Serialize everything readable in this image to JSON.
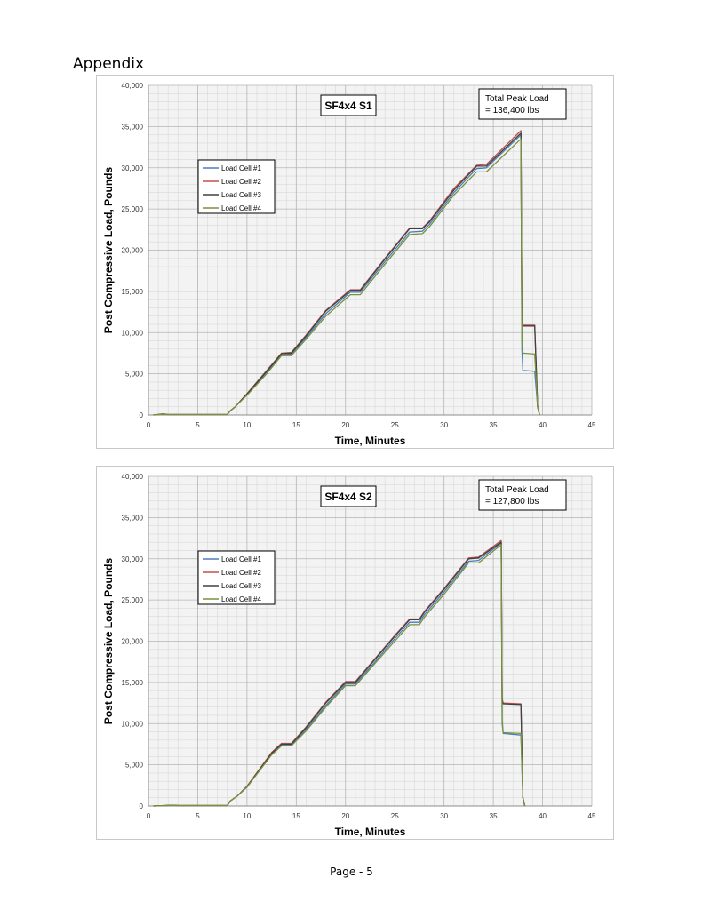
{
  "page": {
    "heading": "Appendix",
    "footer": "Page - 5"
  },
  "chart_data": [
    {
      "type": "line",
      "title": "SF4x4 S1",
      "annotation": [
        "Total Peak Load",
        "= 136,400 lbs"
      ],
      "xlabel": "Time, Minutes",
      "ylabel": "Post Compressive Load, Pounds",
      "xlim": [
        0,
        45
      ],
      "ylim": [
        0,
        40000
      ],
      "xticks": [
        0,
        5,
        10,
        15,
        20,
        25,
        30,
        35,
        40,
        45
      ],
      "yticks": [
        0,
        5000,
        10000,
        15000,
        20000,
        25000,
        30000,
        35000,
        40000
      ],
      "ytick_labels": [
        "0",
        "5,000",
        "10,000",
        "15,000",
        "20,000",
        "25,000",
        "30,000",
        "35,000",
        "40,000"
      ],
      "grid": true,
      "legend_position": "upper-left",
      "series": [
        {
          "name": "Load Cell #1",
          "color": "#4a7ebb",
          "x": [
            0.5,
            1.5,
            2,
            8,
            8.3,
            8.8,
            10,
            12,
            13.5,
            14.5,
            16,
            18,
            20.5,
            21.5,
            24,
            26.5,
            27.8,
            28.5,
            31,
            33.3,
            34.3,
            37.8,
            37.9,
            38,
            39.2,
            39.5,
            39.7
          ],
          "y": [
            0,
            100,
            50,
            50,
            500,
            1000,
            2500,
            5200,
            7300,
            7400,
            9400,
            12300,
            14900,
            14900,
            18600,
            22200,
            22300,
            23100,
            27000,
            29900,
            30000,
            34000,
            8000,
            5400,
            5300,
            1000,
            0
          ]
        },
        {
          "name": "Load Cell #2",
          "color": "#c0504d",
          "x": [
            0.5,
            1.5,
            2,
            8,
            8.3,
            8.8,
            10,
            12,
            13.5,
            14.5,
            16,
            18,
            20.5,
            21.5,
            24,
            26.5,
            27.8,
            28.5,
            31,
            33.3,
            34.3,
            37.8,
            37.9,
            38,
            39.2,
            39.5,
            39.7
          ],
          "y": [
            0,
            150,
            50,
            50,
            500,
            1000,
            2600,
            5400,
            7500,
            7600,
            9700,
            12700,
            15200,
            15200,
            19000,
            22700,
            22700,
            23500,
            27500,
            30300,
            30400,
            34500,
            11500,
            10900,
            10900,
            1000,
            0
          ]
        },
        {
          "name": "Load Cell #3",
          "color": "#404040",
          "x": [
            0.5,
            1.5,
            2,
            8,
            8.3,
            8.8,
            10,
            12,
            13.5,
            14.5,
            16,
            18,
            20.5,
            21.5,
            24,
            26.5,
            27.8,
            28.5,
            31,
            33.3,
            34.3,
            37.8,
            37.9,
            38,
            39.2,
            39.5,
            39.7
          ],
          "y": [
            0,
            100,
            50,
            50,
            500,
            1000,
            2550,
            5300,
            7450,
            7500,
            9600,
            12600,
            15100,
            15100,
            18900,
            22600,
            22600,
            23400,
            27300,
            30200,
            30200,
            34200,
            11200,
            10800,
            10800,
            1000,
            0
          ]
        },
        {
          "name": "Load Cell #4",
          "color": "#77933c",
          "x": [
            0.5,
            1.5,
            2,
            8,
            8.3,
            8.8,
            10,
            12,
            13.5,
            14.5,
            16,
            18,
            20.5,
            21.5,
            24,
            26.5,
            27.8,
            28.5,
            31,
            33.3,
            34.3,
            37.8,
            37.9,
            38,
            39.2,
            39.5,
            39.7
          ],
          "y": [
            0,
            80,
            50,
            50,
            500,
            1000,
            2400,
            5000,
            7200,
            7200,
            9200,
            12000,
            14600,
            14600,
            18300,
            21900,
            22000,
            22800,
            26700,
            29500,
            29500,
            33500,
            9000,
            7500,
            7400,
            1000,
            0
          ]
        }
      ]
    },
    {
      "type": "line",
      "title": "SF4x4 S2",
      "annotation": [
        "Total Peak Load",
        "= 127,800 lbs"
      ],
      "xlabel": "Time, Minutes",
      "ylabel": "Post Compressive Load, Pounds",
      "xlim": [
        0,
        45
      ],
      "ylim": [
        0,
        40000
      ],
      "xticks": [
        0,
        5,
        10,
        15,
        20,
        25,
        30,
        35,
        40,
        45
      ],
      "yticks": [
        0,
        5000,
        10000,
        15000,
        20000,
        25000,
        30000,
        35000,
        40000
      ],
      "ytick_labels": [
        "0",
        "5,000",
        "10,000",
        "15,000",
        "20,000",
        "25,000",
        "30,000",
        "35,000",
        "40,000"
      ],
      "grid": true,
      "legend_position": "upper-left",
      "series": [
        {
          "name": "Load Cell #1",
          "color": "#4a7ebb",
          "x": [
            0.5,
            2.5,
            3,
            8,
            8.3,
            9,
            10,
            12.5,
            13.5,
            14.5,
            16,
            18,
            20,
            21,
            23,
            25,
            26.5,
            27.5,
            28,
            30,
            32.5,
            33.5,
            35.8,
            35.9,
            36,
            37.8,
            38,
            38.2
          ],
          "y": [
            0,
            80,
            50,
            50,
            600,
            1200,
            2300,
            6300,
            7400,
            7400,
            9300,
            12200,
            14800,
            14800,
            17500,
            20300,
            22300,
            22300,
            23200,
            26000,
            29700,
            29800,
            31900,
            10000,
            8800,
            8600,
            1000,
            0
          ]
        },
        {
          "name": "Load Cell #2",
          "color": "#c0504d",
          "x": [
            0.5,
            2.5,
            3,
            8,
            8.3,
            9,
            10,
            12.5,
            13.5,
            14.5,
            16,
            18,
            20,
            21,
            23,
            25,
            26.5,
            27.5,
            28,
            30,
            32.5,
            33.5,
            35.8,
            35.9,
            36,
            37.8,
            38,
            38.2
          ],
          "y": [
            0,
            100,
            50,
            50,
            600,
            1200,
            2400,
            6500,
            7600,
            7600,
            9600,
            12600,
            15100,
            15100,
            17900,
            20700,
            22700,
            22700,
            23600,
            26400,
            30100,
            30200,
            32200,
            13000,
            12500,
            12400,
            1000,
            0
          ]
        },
        {
          "name": "Load Cell #3",
          "color": "#404040",
          "x": [
            0.5,
            2.5,
            3,
            8,
            8.3,
            9,
            10,
            12.5,
            13.5,
            14.5,
            16,
            18,
            20,
            21,
            23,
            25,
            26.5,
            27.5,
            28,
            30,
            32.5,
            33.5,
            35.8,
            35.9,
            36,
            37.8,
            38,
            38.2
          ],
          "y": [
            0,
            90,
            50,
            50,
            600,
            1200,
            2350,
            6400,
            7500,
            7500,
            9500,
            12500,
            15000,
            15000,
            17800,
            20600,
            22600,
            22600,
            23500,
            26300,
            30000,
            30100,
            32000,
            12800,
            12400,
            12300,
            1000,
            0
          ]
        },
        {
          "name": "Load Cell #4",
          "color": "#77933c",
          "x": [
            0.5,
            2.5,
            3,
            8,
            8.3,
            9,
            10,
            12.5,
            13.5,
            14.5,
            16,
            18,
            20,
            21,
            23,
            25,
            26.5,
            27.5,
            28,
            30,
            32.5,
            33.5,
            35.8,
            35.9,
            36,
            37.8,
            38,
            38.2
          ],
          "y": [
            0,
            70,
            50,
            50,
            600,
            1200,
            2300,
            6200,
            7300,
            7300,
            9100,
            12000,
            14600,
            14600,
            17300,
            20000,
            22000,
            22000,
            22900,
            25700,
            29500,
            29500,
            31700,
            10500,
            8900,
            8800,
            1000,
            0
          ]
        }
      ]
    }
  ]
}
